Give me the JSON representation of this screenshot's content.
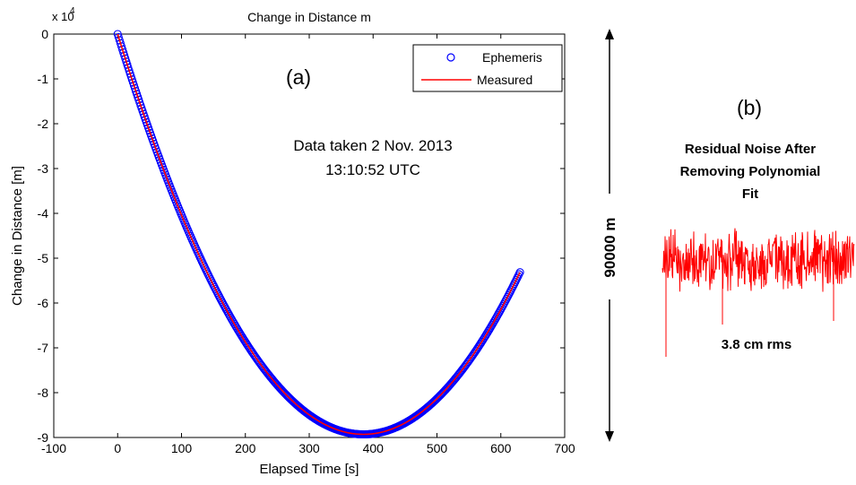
{
  "chart_data": {
    "type": "line",
    "title": "Change in Distance m",
    "xlabel": "Elapsed Time [s]",
    "ylabel": "Change in Distance [m]",
    "y_exponent_label": "x 10",
    "y_exponent_power": "4",
    "xlim": [
      -100,
      700
    ],
    "ylim": [
      -90000,
      0
    ],
    "xticks": [
      -100,
      0,
      100,
      200,
      300,
      400,
      500,
      600,
      700
    ],
    "xtick_labels": [
      "-100",
      "0",
      "100",
      "200",
      "300",
      "400",
      "500",
      "600",
      "700"
    ],
    "yticks": [
      0,
      -10000,
      -20000,
      -30000,
      -40000,
      -50000,
      -60000,
      -70000,
      -80000,
      -90000
    ],
    "ytick_labels": [
      "0",
      "-1",
      "-2",
      "-3",
      "-4",
      "-5",
      "-6",
      "-7",
      "-8",
      "-9"
    ],
    "grid": false,
    "legend_position": "top-right",
    "series": [
      {
        "name": "Ephemeris",
        "style": "circle-markers",
        "color": "#0000ff",
        "x": [
          0,
          630
        ],
        "fit": {
          "t_min": 385,
          "y_min": -89300,
          "t_start": 0,
          "y_start": 0
        }
      },
      {
        "name": "Measured",
        "style": "line",
        "color": "#ff0000",
        "x": [
          0,
          630
        ],
        "fit": {
          "t_min": 385,
          "y_min": -89300,
          "t_start": 0,
          "y_start": 0
        }
      }
    ],
    "annotations": {
      "panel_a": "(a)",
      "data_line1": "Data taken 2 Nov. 2013",
      "data_line2": "13:10:52 UTC"
    }
  },
  "panel_b": {
    "label": "(b)",
    "title_line1": "Residual Noise After",
    "title_line2": "Removing Polynomial",
    "title_line3": "Fit",
    "span_label": "90000 m",
    "rms_label": "3.8 cm rms",
    "noise_color": "#ff0000"
  }
}
